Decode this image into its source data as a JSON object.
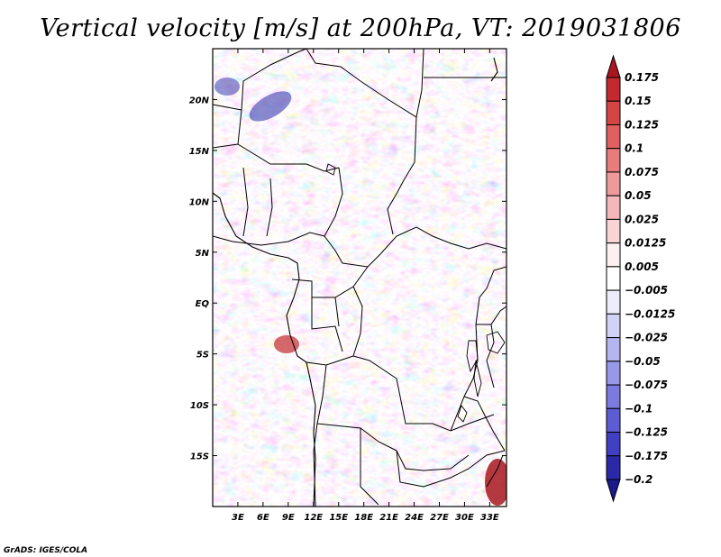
{
  "title": "Vertical velocity [m/s] at 200hPa, VT: 2019031806",
  "credit": "GrADS: IGES/COLA",
  "map": {
    "lon_range": [
      0,
      35
    ],
    "lat_range": [
      -20,
      25
    ],
    "lat_ticks": [
      {
        "value": 20,
        "label": "20N"
      },
      {
        "value": 15,
        "label": "15N"
      },
      {
        "value": 10,
        "label": "10N"
      },
      {
        "value": 5,
        "label": "5N"
      },
      {
        "value": 0,
        "label": "EQ"
      },
      {
        "value": -5,
        "label": "5S"
      },
      {
        "value": -10,
        "label": "10S"
      },
      {
        "value": -15,
        "label": "15S"
      }
    ],
    "lon_ticks": [
      {
        "value": 3,
        "label": "3E"
      },
      {
        "value": 6,
        "label": "6E"
      },
      {
        "value": 9,
        "label": "9E"
      },
      {
        "value": 12,
        "label": "12E"
      },
      {
        "value": 15,
        "label": "15E"
      },
      {
        "value": 18,
        "label": "18E"
      },
      {
        "value": 21,
        "label": "21E"
      },
      {
        "value": 24,
        "label": "24E"
      },
      {
        "value": 27,
        "label": "27E"
      },
      {
        "value": 30,
        "label": "30E"
      },
      {
        "value": 33,
        "label": "33E"
      }
    ]
  },
  "colorbar": {
    "levels": [
      "0.175",
      "0.15",
      "0.125",
      "0.1",
      "0.075",
      "0.05",
      "0.025",
      "0.0125",
      "0.005",
      "−0.005",
      "−0.0125",
      "−0.025",
      "−0.05",
      "−0.075",
      "−0.1",
      "−0.125",
      "−0.175",
      "−0.2"
    ],
    "colors": [
      "#a8161f",
      "#c22a30",
      "#d64545",
      "#e06060",
      "#e87b7b",
      "#ef9a9a",
      "#f5b8b8",
      "#fad4d4",
      "#fdf0f0",
      "#ffffff",
      "#ececfc",
      "#d2d2f7",
      "#b5b5f0",
      "#9898e8",
      "#7a7adf",
      "#5c5cd3",
      "#4040c2",
      "#2a2aa8",
      "#1a1a8c"
    ]
  }
}
